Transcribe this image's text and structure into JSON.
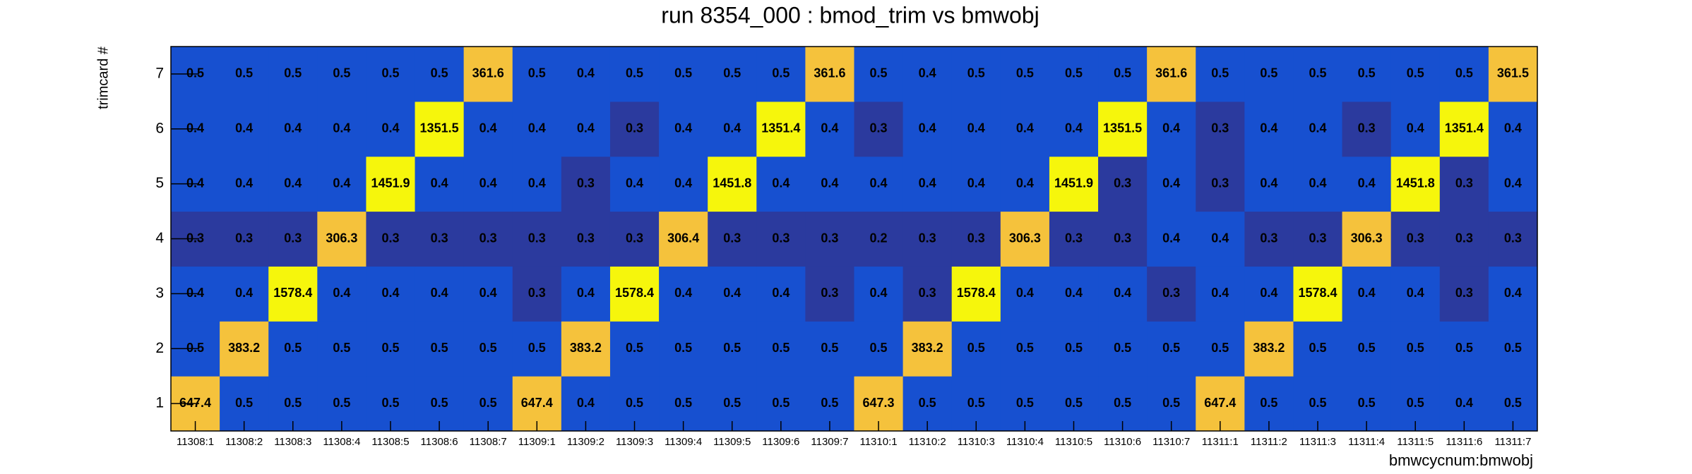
{
  "chart_data": {
    "type": "heatmap",
    "title": "run 8354_000 : bmod_trim vs bmwobj",
    "x_label": "bmwcycnum:bmwobj",
    "y_label": "trimcard #",
    "categories": [
      "11308:1",
      "11308:2",
      "11308:3",
      "11308:4",
      "11308:5",
      "11308:6",
      "11308:7",
      "11309:1",
      "11309:2",
      "11309:3",
      "11309:4",
      "11309:5",
      "11309:6",
      "11309:7",
      "11310:1",
      "11310:2",
      "11310:3",
      "11310:4",
      "11310:5",
      "11310:6",
      "11310:7",
      "11311:1",
      "11311:2",
      "11311:3",
      "11311:4",
      "11311:5",
      "11311:6",
      "11311:7"
    ],
    "y_categories": [
      "1",
      "2",
      "3",
      "4",
      "5",
      "6",
      "7"
    ],
    "values": [
      [
        647.4,
        0.5,
        0.5,
        0.5,
        0.5,
        0.5,
        0.5,
        647.4,
        0.4,
        0.5,
        0.5,
        0.5,
        0.5,
        0.5,
        647.3,
        0.5,
        0.5,
        0.5,
        0.5,
        0.5,
        0.5,
        647.4,
        0.5,
        0.5,
        0.5,
        0.5,
        0.4,
        0.5
      ],
      [
        0.5,
        383.2,
        0.5,
        0.5,
        0.5,
        0.5,
        0.5,
        0.5,
        383.2,
        0.5,
        0.5,
        0.5,
        0.5,
        0.5,
        0.5,
        383.2,
        0.5,
        0.5,
        0.5,
        0.5,
        0.5,
        0.5,
        383.2,
        0.5,
        0.5,
        0.5,
        0.5,
        0.5
      ],
      [
        0.4,
        0.4,
        1578.4,
        0.4,
        0.4,
        0.4,
        0.4,
        0.3,
        0.4,
        1578.4,
        0.4,
        0.4,
        0.4,
        0.3,
        0.4,
        0.3,
        1578.4,
        0.4,
        0.4,
        0.4,
        0.3,
        0.4,
        0.4,
        1578.4,
        0.4,
        0.4,
        0.3,
        0.4
      ],
      [
        0.3,
        0.3,
        0.3,
        306.3,
        0.3,
        0.3,
        0.3,
        0.3,
        0.3,
        0.3,
        306.4,
        0.3,
        0.3,
        0.3,
        0.2,
        0.3,
        0.3,
        306.3,
        0.3,
        0.3,
        0.4,
        0.4,
        0.3,
        0.3,
        306.3,
        0.3,
        0.3,
        0.3
      ],
      [
        0.4,
        0.4,
        0.4,
        0.4,
        1451.9,
        0.4,
        0.4,
        0.4,
        0.3,
        0.4,
        0.4,
        1451.8,
        0.4,
        0.4,
        0.4,
        0.4,
        0.4,
        0.4,
        1451.9,
        0.3,
        0.4,
        0.3,
        0.4,
        0.4,
        0.4,
        1451.8,
        0.3,
        0.4
      ],
      [
        0.4,
        0.4,
        0.4,
        0.4,
        0.4,
        1351.5,
        0.4,
        0.4,
        0.4,
        0.3,
        0.4,
        0.4,
        1351.4,
        0.4,
        0.3,
        0.4,
        0.4,
        0.4,
        0.4,
        1351.5,
        0.4,
        0.3,
        0.4,
        0.4,
        0.3,
        0.4,
        1351.4,
        0.4
      ],
      [
        0.5,
        0.5,
        0.5,
        0.5,
        0.5,
        0.5,
        361.6,
        0.5,
        0.4,
        0.5,
        0.5,
        0.5,
        0.5,
        361.6,
        0.5,
        0.4,
        0.5,
        0.5,
        0.5,
        0.5,
        361.6,
        0.5,
        0.5,
        0.5,
        0.5,
        0.5,
        0.5,
        361.5
      ]
    ],
    "colorscale": [
      [
        0.35,
        "#2b3a9e"
      ],
      [
        1,
        "#1750d0"
      ],
      [
        1000,
        "#f5c23c"
      ],
      [
        2000,
        "#f6f60c"
      ]
    ]
  }
}
